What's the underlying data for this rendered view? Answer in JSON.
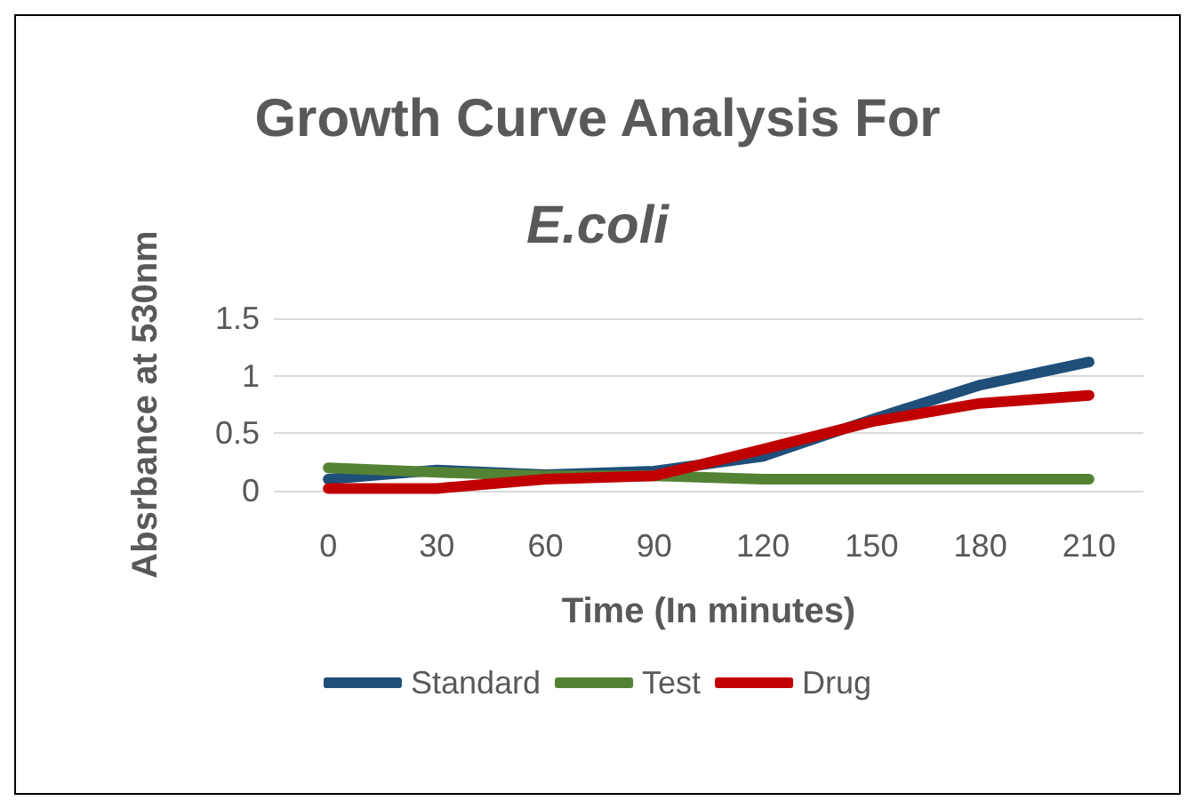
{
  "chart_data": {
    "type": "line",
    "title": "Growth Curve Analysis For",
    "subtitle": "E.coli",
    "xlabel": "Time (In minutes)",
    "ylabel": "Absrbance at 530nm",
    "categories": [
      "0",
      "30",
      "60",
      "90",
      "120",
      "150",
      "180",
      "210"
    ],
    "series": [
      {
        "name": "Standard",
        "color": "#1f4e79",
        "values": [
          0.1,
          0.18,
          0.14,
          0.17,
          0.3,
          0.62,
          0.92,
          1.12
        ]
      },
      {
        "name": "Test",
        "color": "#548235",
        "values": [
          0.2,
          0.16,
          0.13,
          0.13,
          0.1,
          0.1,
          0.1,
          0.1
        ]
      },
      {
        "name": "Drug",
        "color": "#c00000",
        "values": [
          0.02,
          0.02,
          0.1,
          0.13,
          0.36,
          0.6,
          0.76,
          0.83
        ]
      }
    ],
    "ylim": [
      0,
      1.5
    ],
    "yticks": [
      0,
      0.5,
      1,
      1.5
    ],
    "grid": "y",
    "legend": "bottom",
    "marker": "none",
    "line_style": "solid"
  }
}
